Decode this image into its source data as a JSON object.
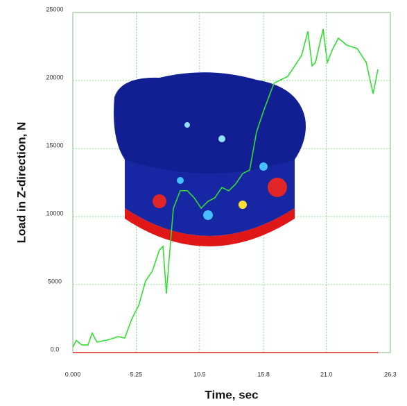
{
  "chart_data": {
    "type": "line",
    "xlabel": "Time, sec",
    "ylabel": "Load in Z-direction, N",
    "xlim": [
      0,
      26.3
    ],
    "ylim": [
      0,
      25000
    ],
    "xticks": [
      {
        "value": 0,
        "label": "0.000"
      },
      5.25,
      10.5,
      15.8,
      {
        "value": 21.0,
        "label": "21.0"
      },
      26.3
    ],
    "yticks": [
      {
        "value": 0,
        "label": "0.0"
      },
      5000,
      10000,
      15000,
      20000,
      25000
    ],
    "grid": true,
    "series": [
      {
        "color": "#33dd33",
        "x": [
          0,
          0.29,
          0.75,
          1.26,
          1.6,
          2.0,
          2.87,
          3.73,
          4.3,
          4.88,
          5.46,
          6.03,
          6.6,
          7.18,
          7.47,
          7.75,
          8.04,
          8.33,
          8.9,
          9.48,
          10.05,
          10.63,
          11.2,
          11.77,
          12.35,
          12.92,
          13.5,
          14.07,
          14.65,
          15.22,
          15.8,
          16.66,
          17.23,
          17.8,
          18.38,
          18.95,
          19.47,
          19.82,
          20.1,
          20.73,
          21.08,
          21.54,
          22.0,
          22.69,
          23.55,
          24.3,
          24.87,
          25.27
        ],
        "values": [
          400,
          900,
          560,
          560,
          1430,
          770,
          920,
          1170,
          1070,
          2450,
          3470,
          5260,
          6020,
          7550,
          7810,
          4340,
          7550,
          10600,
          11900,
          11900,
          11380,
          10610,
          11120,
          11380,
          12140,
          11890,
          12400,
          13160,
          13420,
          16220,
          17760,
          19800,
          20050,
          20300,
          21070,
          21840,
          23620,
          21070,
          21330,
          23780,
          21330,
          22350,
          23110,
          22600,
          22350,
          21330,
          19030,
          20820
        ]
      },
      {
        "color": "#dd2222",
        "x": [
          0,
          25.3
        ],
        "values": [
          0,
          0
        ]
      }
    ]
  }
}
